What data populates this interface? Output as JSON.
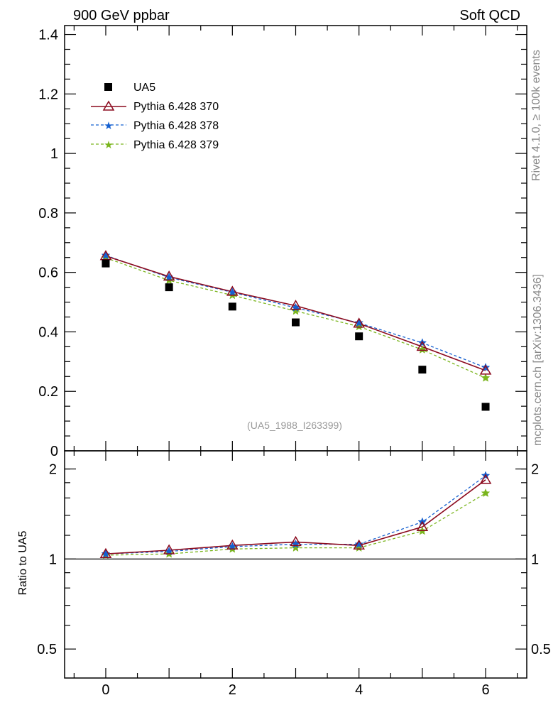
{
  "header": {
    "left": "900 GeV ppbar",
    "right": "Soft QCD"
  },
  "side_text": {
    "top": "Rivet 4.1.0, ≥ 100k events",
    "bottom": "mcplots.cern.ch [arXiv:1306.3436]"
  },
  "watermark": "(UA5_1988_I263399)",
  "colors": {
    "ua5": "#000000",
    "p370": "#8b0a1e",
    "p378": "#1560d0",
    "p379": "#7ab51d"
  },
  "chart_data": [
    {
      "type": "scatter",
      "panel": "main",
      "title": "900 GeV ppbar",
      "xlabel": "",
      "ylabel": "",
      "xlim": [
        -0.65,
        6.65
      ],
      "ylim": [
        0,
        1.43
      ],
      "x_ticks": [
        "0",
        "2",
        "4",
        "6"
      ],
      "y_ticks": [
        "0",
        "0.2",
        "0.4",
        "0.6",
        "0.8",
        "1",
        "1.2",
        "1.4"
      ],
      "x": [
        0,
        1,
        2,
        3,
        4,
        5,
        6
      ],
      "series": [
        {
          "name": "UA5",
          "style": "square",
          "values": [
            0.63,
            0.55,
            0.485,
            0.432,
            0.385,
            0.273,
            0.148
          ]
        },
        {
          "name": "Pythia 6.428 370",
          "style": "triangle-solid",
          "values": [
            0.655,
            0.586,
            0.535,
            0.488,
            0.428,
            0.35,
            0.27
          ]
        },
        {
          "name": "Pythia 6.428 378",
          "style": "star-dashed",
          "values": [
            0.657,
            0.583,
            0.533,
            0.481,
            0.43,
            0.363,
            0.28
          ]
        },
        {
          "name": "Pythia 6.428 379",
          "style": "star-dashed",
          "values": [
            0.649,
            0.573,
            0.523,
            0.47,
            0.418,
            0.34,
            0.245
          ]
        }
      ]
    },
    {
      "type": "line",
      "panel": "ratio",
      "ylabel": "Ratio to UA5",
      "xlim": [
        -0.65,
        6.65
      ],
      "ylim": [
        0.4,
        2.3
      ],
      "y_ticks": [
        "0.5",
        "1",
        "2"
      ],
      "x": [
        0,
        1,
        2,
        3,
        4,
        5,
        6
      ],
      "series": [
        {
          "name": "Pythia 6.428 370",
          "values": [
            1.04,
            1.07,
            1.11,
            1.14,
            1.11,
            1.28,
            1.84
          ]
        },
        {
          "name": "Pythia 6.428 378",
          "values": [
            1.04,
            1.06,
            1.1,
            1.12,
            1.12,
            1.33,
            1.9
          ]
        },
        {
          "name": "Pythia 6.428 379",
          "values": [
            1.03,
            1.04,
            1.08,
            1.09,
            1.09,
            1.24,
            1.66
          ]
        }
      ]
    }
  ]
}
